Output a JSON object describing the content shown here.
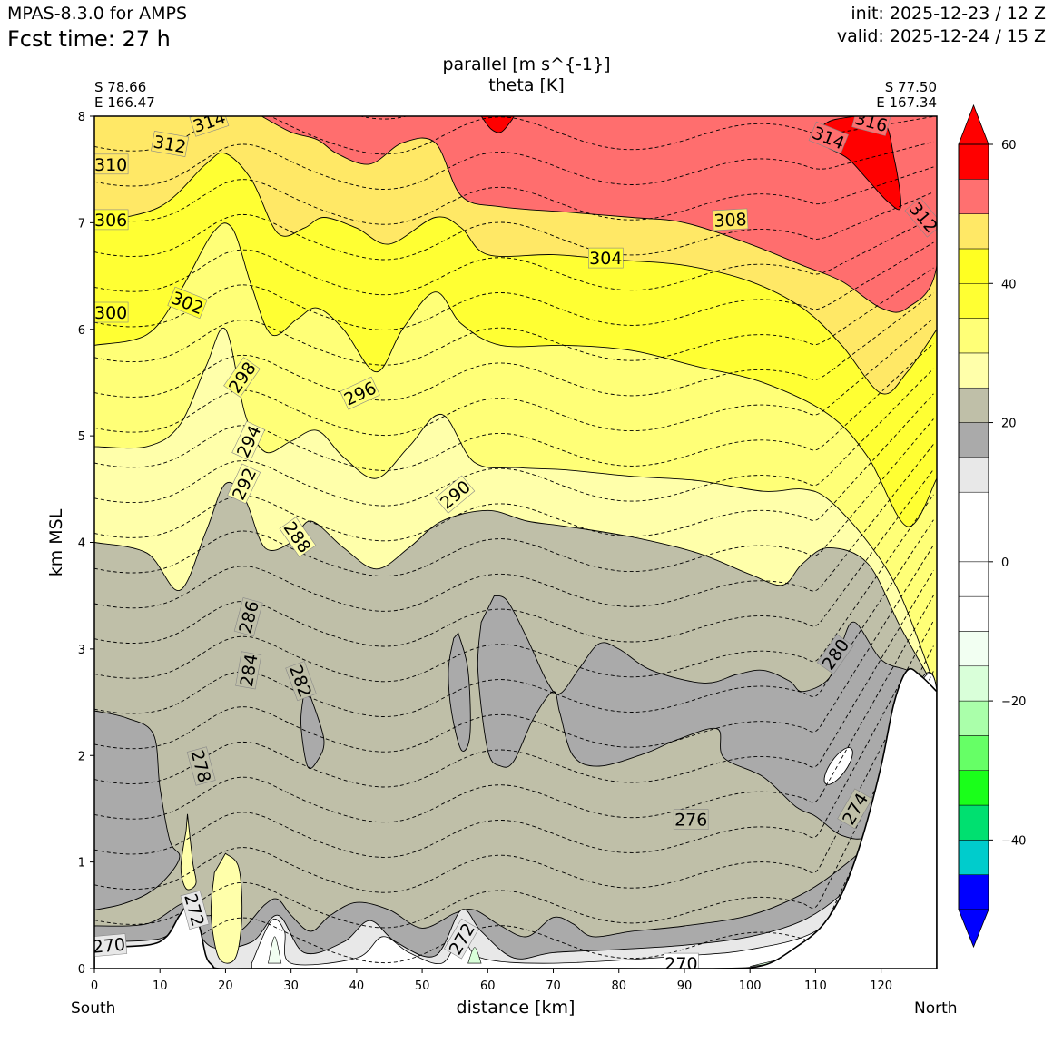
{
  "header": {
    "model": "MPAS-8.3.0 for AMPS",
    "fcst_time": "Fcst time:   27 h",
    "init": "init: 2025-12-23 / 12 Z",
    "valid": "valid: 2025-12-24 / 15 Z"
  },
  "endpoints": {
    "left": {
      "lat": "S 78.66",
      "lon": "E 166.47",
      "side": "South"
    },
    "right": {
      "lat": "S 77.50",
      "lon": "E 167.34",
      "side": "North"
    }
  },
  "colors": {
    "terrain": "#ffffff",
    "dashed_contour": "#000000"
  },
  "chart_data": {
    "type": "cross-section",
    "title": "parallel [m s^{-1}]",
    "subtitle": "theta [K]",
    "xlabel": "distance [km]",
    "ylabel": "km MSL",
    "xlim": [
      0,
      128.5
    ],
    "ylim": [
      0,
      8
    ],
    "xticks": [
      0,
      10,
      20,
      30,
      40,
      50,
      60,
      70,
      80,
      90,
      100,
      110,
      120
    ],
    "yticks": [
      0,
      1,
      2,
      3,
      4,
      5,
      6,
      7,
      8
    ],
    "filled_field": {
      "name": "parallel wind speed",
      "units": "m s^{-1}",
      "levels": [
        -60,
        -55,
        -50,
        -45,
        -40,
        -35,
        -30,
        -25,
        -20,
        -15,
        -10,
        -5,
        0,
        5,
        10,
        15,
        20,
        25,
        30,
        35,
        40,
        45,
        50,
        55,
        60
      ],
      "colors": [
        "#0000ff",
        "#0000ff",
        "#0000ff",
        "#00cccc",
        "#00e070",
        "#1aff1a",
        "#66ff66",
        "#aaffaa",
        "#d9ffd9",
        "#f2fff2",
        "#ffffff",
        "#ffffff",
        "#ffffff",
        "#ffffff",
        "#e8e8e8",
        "#aaaaaa",
        "#bfbfa8",
        "#ffffaa",
        "#ffff77",
        "#ffff33",
        "#ffff22",
        "#ffe866",
        "#ff7070",
        "#ff0000"
      ],
      "colorbar_ticks": [
        60,
        40,
        20,
        0,
        -20,
        -40
      ],
      "bands_top_to_bottom": [
        {
          "range": [
            50,
            60
          ],
          "color": "#ff6e6e",
          "boundary": [
            [
              25.5,
              8
            ],
            [
              30,
              7.85
            ],
            [
              34,
              7.78
            ],
            [
              37,
              7.65
            ],
            [
              42,
              7.55
            ],
            [
              47,
              7.75
            ],
            [
              52,
              7.75
            ],
            [
              56,
              7.25
            ],
            [
              62,
              7.15
            ],
            [
              72,
              7.1
            ],
            [
              82,
              7.05
            ],
            [
              90,
              7.0
            ],
            [
              100,
              6.8
            ],
            [
              108,
              6.6
            ],
            [
              114,
              6.45
            ],
            [
              120,
              6.2
            ],
            [
              124,
              6.2
            ],
            [
              128.5,
              6.6
            ],
            [
              128.5,
              8
            ]
          ]
        },
        {
          "range": [
            55,
            60
          ],
          "color": "#ff0000",
          "boundary": [
            [
              110,
              7.85
            ],
            [
              113,
              7.97
            ],
            [
              120,
              7.97
            ],
            [
              122,
              7.6
            ],
            [
              123,
              7.15
            ],
            [
              121,
              7.2
            ],
            [
              118,
              7.4
            ],
            [
              115,
              7.6
            ],
            [
              112,
              7.7
            ]
          ]
        },
        {
          "range": [
            45,
            50
          ],
          "color": "#ffe866",
          "boundary": [
            [
              0,
              7.0
            ],
            [
              10,
              7.15
            ],
            [
              17,
              7.55
            ],
            [
              20,
              7.65
            ],
            [
              24,
              7.4
            ],
            [
              28,
              6.9
            ],
            [
              32,
              6.95
            ],
            [
              35,
              7.05
            ],
            [
              40,
              6.95
            ],
            [
              45,
              6.8
            ],
            [
              52,
              7.05
            ],
            [
              56,
              6.95
            ],
            [
              60,
              6.7
            ],
            [
              70,
              6.7
            ],
            [
              80,
              6.65
            ],
            [
              90,
              6.6
            ],
            [
              100,
              6.45
            ],
            [
              108,
              6.2
            ],
            [
              114,
              5.85
            ],
            [
              120,
              5.4
            ],
            [
              124,
              5.6
            ],
            [
              128.5,
              6.0
            ]
          ]
        },
        {
          "range": [
            40,
            45
          ],
          "color": "#ffff33",
          "boundary": [
            [
              0,
              5.85
            ],
            [
              8,
              5.95
            ],
            [
              13,
              6.35
            ],
            [
              18,
              6.9
            ],
            [
              21,
              6.95
            ],
            [
              24,
              6.4
            ],
            [
              27,
              5.95
            ],
            [
              31,
              6.1
            ],
            [
              34,
              6.2
            ],
            [
              38,
              6.0
            ],
            [
              43,
              5.6
            ],
            [
              47,
              6.0
            ],
            [
              52,
              6.35
            ],
            [
              56,
              6.05
            ],
            [
              62,
              5.85
            ],
            [
              72,
              5.85
            ],
            [
              82,
              5.8
            ],
            [
              92,
              5.65
            ],
            [
              102,
              5.5
            ],
            [
              112,
              5.2
            ],
            [
              118,
              4.8
            ],
            [
              124,
              4.15
            ],
            [
              128.5,
              4.6
            ]
          ]
        },
        {
          "range": [
            35,
            40
          ],
          "color": "#ffff77",
          "boundary": [
            [
              0,
              4.9
            ],
            [
              8,
              4.9
            ],
            [
              13,
              5.1
            ],
            [
              17,
              5.65
            ],
            [
              20,
              6.0
            ],
            [
              23,
              5.2
            ],
            [
              26,
              4.85
            ],
            [
              30,
              4.95
            ],
            [
              34,
              5.05
            ],
            [
              38,
              4.8
            ],
            [
              43,
              4.6
            ],
            [
              48,
              4.9
            ],
            [
              53,
              5.2
            ],
            [
              58,
              4.75
            ],
            [
              65,
              4.7
            ],
            [
              72,
              4.68
            ],
            [
              82,
              4.62
            ],
            [
              92,
              4.58
            ],
            [
              102,
              4.48
            ],
            [
              108,
              4.5
            ],
            [
              112,
              4.4
            ],
            [
              118,
              4.0
            ],
            [
              123,
              3.5
            ],
            [
              128.5,
              2.6
            ]
          ]
        },
        {
          "range": [
            30,
            35
          ],
          "color": "#ffffaa",
          "boundary": [
            [
              0,
              4.0
            ],
            [
              8,
              3.9
            ],
            [
              13,
              3.55
            ],
            [
              17,
              4.1
            ],
            [
              20,
              4.55
            ],
            [
              23,
              4.4
            ],
            [
              26,
              3.95
            ],
            [
              30,
              4.0
            ],
            [
              33,
              4.2
            ],
            [
              38,
              3.95
            ],
            [
              43,
              3.75
            ],
            [
              48,
              3.95
            ],
            [
              53,
              4.2
            ],
            [
              60,
              4.3
            ],
            [
              66,
              4.2
            ],
            [
              72,
              4.15
            ],
            [
              82,
              4.05
            ],
            [
              92,
              3.9
            ],
            [
              100,
              3.7
            ],
            [
              105,
              3.6
            ],
            [
              108,
              3.8
            ],
            [
              112,
              3.95
            ],
            [
              118,
              3.8
            ],
            [
              123,
              3.2
            ],
            [
              128.5,
              2.6
            ]
          ]
        },
        {
          "range": [
            20,
            25
          ],
          "color": "#bfbfa8",
          "boundary": [
            [
              0,
              0.2
            ],
            [
              128.5,
              0.2
            ],
            [
              128.5,
              2.6
            ],
            [
              123,
              2.85
            ],
            [
              120,
              2.85
            ],
            [
              116,
              3.25
            ],
            [
              114,
              3.05
            ],
            [
              112,
              2.7
            ],
            [
              108,
              2.6
            ],
            [
              106,
              2.7
            ],
            [
              102,
              2.8
            ],
            [
              98,
              2.75
            ],
            [
              93,
              2.65
            ],
            [
              85,
              2.8
            ],
            [
              80,
              3.0
            ],
            [
              77,
              3.05
            ],
            [
              74,
              2.8
            ],
            [
              71,
              2.6
            ],
            [
              68,
              3.0
            ],
            [
              63,
              3.4
            ],
            [
              61,
              3.5
            ],
            [
              59,
              3.2
            ],
            [
              58,
              2.8
            ],
            [
              60,
              2.0
            ],
            [
              62,
              1.9
            ],
            [
              64,
              2.0
            ],
            [
              67,
              2.4
            ],
            [
              70,
              2.6
            ],
            [
              71,
              2.4
            ],
            [
              73,
              2.0
            ],
            [
              77,
              1.9
            ],
            [
              84,
              2.0
            ],
            [
              89,
              2.15
            ],
            [
              95,
              2.25
            ],
            [
              96,
              2.0
            ],
            [
              102,
              1.8
            ],
            [
              107,
              1.5
            ],
            [
              110,
              1.4
            ],
            [
              114,
              1.2
            ],
            [
              118,
              1.0
            ],
            [
              124,
              0.8
            ],
            [
              128.5,
              0.55
            ]
          ]
        },
        {
          "range": [
            15,
            20
          ],
          "color": "#aaaaaa",
          "note": "dark grey regions near surface and mid-levels"
        },
        {
          "range": [
            10,
            15
          ],
          "color": "#e8e8e8",
          "note": "thin layer above terrain"
        }
      ]
    },
    "contours": {
      "name": "theta",
      "units": "K",
      "interval": 2,
      "style": "dashed",
      "range": [
        270,
        316
      ],
      "labels": [
        {
          "value": "314",
          "x": 17.5,
          "y": 7.95,
          "angle": -18,
          "color": "#ffe866"
        },
        {
          "value": "312",
          "x": 11.5,
          "y": 7.74,
          "angle": 10,
          "color": "#ffe866"
        },
        {
          "value": "310",
          "x": 2.5,
          "y": 7.55,
          "angle": 0,
          "color": "#ffe866"
        },
        {
          "value": "306",
          "x": 2.5,
          "y": 7.03,
          "angle": 0,
          "color": "#ffff33"
        },
        {
          "value": "302",
          "x": 14.2,
          "y": 6.25,
          "angle": 22,
          "color": "#ffff33"
        },
        {
          "value": "300",
          "x": 2.5,
          "y": 6.16,
          "angle": 0,
          "color": "#ffff33"
        },
        {
          "value": "298",
          "x": 22.5,
          "y": 5.55,
          "angle": -55,
          "color": "#ffff77"
        },
        {
          "value": "296",
          "x": 40.5,
          "y": 5.4,
          "angle": -25,
          "color": "#ffff77"
        },
        {
          "value": "294",
          "x": 23.5,
          "y": 4.95,
          "angle": -65,
          "color": "#ffffaa"
        },
        {
          "value": "292",
          "x": 22.8,
          "y": 4.55,
          "angle": -65,
          "color": "#ffffaa"
        },
        {
          "value": "290",
          "x": 55,
          "y": 4.45,
          "angle": -40,
          "color": "#ffffaa"
        },
        {
          "value": "288",
          "x": 31,
          "y": 4.05,
          "angle": 55,
          "color": "#ffffaa"
        },
        {
          "value": "286",
          "x": 23.5,
          "y": 3.3,
          "angle": -75,
          "color": "#bfbfa8"
        },
        {
          "value": "284",
          "x": 23.5,
          "y": 2.8,
          "angle": -80,
          "color": "#bfbfa8"
        },
        {
          "value": "282",
          "x": 31.5,
          "y": 2.7,
          "angle": 70,
          "color": "#bfbfa8"
        },
        {
          "value": "280",
          "x": 113,
          "y": 2.95,
          "angle": -55,
          "color": "#aaaaaa"
        },
        {
          "value": "278",
          "x": 16.3,
          "y": 1.9,
          "angle": 75,
          "color": "#bfbfa8"
        },
        {
          "value": "276",
          "x": 91,
          "y": 1.4,
          "angle": 0,
          "color": "#bfbfa8"
        },
        {
          "value": "274",
          "x": 116,
          "y": 1.5,
          "angle": -60,
          "color": "#bfbfa8"
        },
        {
          "value": "272",
          "x": 15.3,
          "y": 0.55,
          "angle": 75,
          "color": "#e8e8e8"
        },
        {
          "value": "272",
          "x": 56,
          "y": 0.28,
          "angle": -60,
          "color": "#e8e8e8"
        },
        {
          "value": "270",
          "x": 2.2,
          "y": 0.22,
          "angle": -5,
          "color": "#e8e8e8"
        },
        {
          "value": "270",
          "x": 89.5,
          "y": 0.05,
          "angle": 0,
          "color": "#ffffff"
        },
        {
          "value": "316",
          "x": 118.5,
          "y": 7.95,
          "angle": 15,
          "color": "#ff6e6e"
        },
        {
          "value": "314",
          "x": 112,
          "y": 7.8,
          "angle": 22,
          "color": "#ff6e6e"
        },
        {
          "value": "308",
          "x": 97,
          "y": 7.03,
          "angle": -3,
          "color": "#ffe866"
        },
        {
          "value": "304",
          "x": 78,
          "y": 6.67,
          "angle": 0,
          "color": "#ffff33"
        },
        {
          "value": "312",
          "x": 126.5,
          "y": 7.05,
          "angle": 50,
          "color": "#ff6e6e"
        }
      ]
    },
    "terrain": [
      [
        0,
        0.2
      ],
      [
        8,
        0.22
      ],
      [
        11,
        0.3
      ],
      [
        13,
        0.5
      ],
      [
        14.5,
        0.6
      ],
      [
        16,
        0.4
      ],
      [
        17,
        0.12
      ],
      [
        18,
        0.03
      ],
      [
        19,
        0.0
      ],
      [
        25,
        0.0
      ],
      [
        33,
        0.0
      ],
      [
        40,
        0.0
      ],
      [
        50,
        0.0
      ],
      [
        60,
        0.0
      ],
      [
        70,
        0.0
      ],
      [
        80,
        0.0
      ],
      [
        95,
        0.0
      ],
      [
        102,
        0.03
      ],
      [
        107,
        0.2
      ],
      [
        111,
        0.4
      ],
      [
        114,
        0.7
      ],
      [
        117,
        1.2
      ],
      [
        120,
        1.9
      ],
      [
        122,
        2.5
      ],
      [
        124,
        2.8
      ],
      [
        126,
        2.75
      ],
      [
        128.5,
        2.6
      ]
    ]
  }
}
